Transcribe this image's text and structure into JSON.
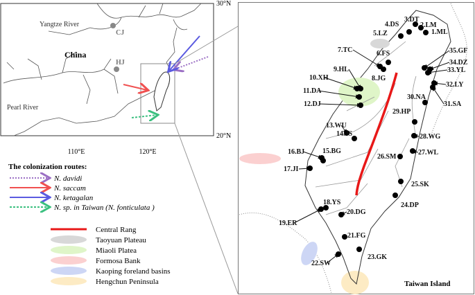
{
  "left_map": {
    "lat_labels": [
      "30°N",
      "20°N"
    ],
    "lon_labels": [
      "110°E",
      "120°E"
    ],
    "places": {
      "yangtze": "Yangtze River",
      "cj": "CJ",
      "china": "China",
      "hj": "HJ",
      "pearl": "Pearl River"
    }
  },
  "routes": {
    "title": "The colonization routes:",
    "items": [
      "N. davidi",
      "N. saccam",
      "N. ketagalan",
      "N. sp. in Taiwan (N. fonticulata )"
    ]
  },
  "regions": [
    "Central Rang",
    "Taoyuan Plateau",
    "Miaoli Platea",
    "Formosa Bank",
    "Kaoping foreland basins",
    "Hengchun Peninsula"
  ],
  "taiwan_island": {
    "title": "Taiwan Island",
    "sites": [
      "1.ML",
      "2.LM",
      "3.DT",
      "4.DS",
      "5.LZ",
      "6.FS",
      "7.TC",
      "8.JG",
      "9.HL",
      "10.XH",
      "11.DA",
      "12.DJ",
      "13.WU",
      "14.JS",
      "15.BG",
      "16.BJ",
      "17.JI",
      "18.YS",
      "19.ER",
      "20.DG",
      "21.FG",
      "22.SW",
      "23.GK",
      "24.DP",
      "25.SK",
      "26.SM",
      "27.WL",
      "28.WG",
      "29.HP",
      "30.NA",
      "31.SA",
      "32.LY",
      "33.YL",
      "34.DZ",
      "35.GF"
    ]
  }
}
